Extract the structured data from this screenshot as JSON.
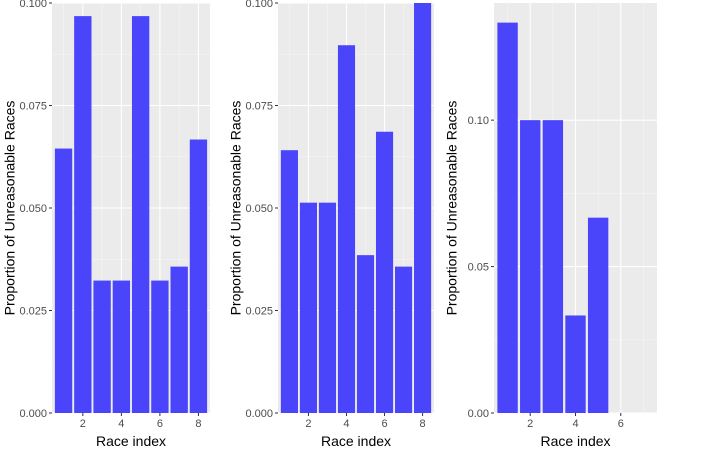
{
  "chart_data": [
    {
      "type": "bar",
      "x": [
        1,
        2,
        3,
        4,
        5,
        6,
        7,
        8
      ],
      "values": [
        0.0645,
        0.0968,
        0.0323,
        0.0323,
        0.0968,
        0.0323,
        0.0357,
        0.0667
      ],
      "xlabel": "Race index",
      "ylabel": "Proportion of Unreasonable Races",
      "xlim": [
        0.4,
        8.6
      ],
      "ylim": [
        0,
        0.1
      ],
      "xticks": [
        2,
        4,
        6,
        8
      ],
      "yticks": [
        0,
        0.025,
        0.05,
        0.075,
        0.1
      ],
      "ytick_labels": [
        "0.000",
        "0.025",
        "0.050",
        "0.075",
        "0.100"
      ],
      "grid": true
    },
    {
      "type": "bar",
      "x": [
        1,
        2,
        3,
        4,
        5,
        6,
        7,
        8
      ],
      "values": [
        0.0641,
        0.0513,
        0.0513,
        0.0897,
        0.0385,
        0.0686,
        0.0357,
        0.1
      ],
      "xlabel": "Race index",
      "ylabel": "Proportion of Unreasonable Races",
      "xlim": [
        0.4,
        8.6
      ],
      "ylim": [
        0,
        0.1
      ],
      "xticks": [
        2,
        4,
        6,
        8
      ],
      "yticks": [
        0,
        0.025,
        0.05,
        0.075,
        0.1
      ],
      "ytick_labels": [
        "0.000",
        "0.025",
        "0.050",
        "0.075",
        "0.100"
      ],
      "grid": true
    },
    {
      "type": "bar",
      "x": [
        1,
        2,
        3,
        4,
        5
      ],
      "values": [
        0.1333,
        0.1,
        0.1,
        0.0333,
        0.0667
      ],
      "xlabel": "Race index",
      "ylabel": "Proportion of Unreasonable Races",
      "xlim": [
        0.4,
        7.6
      ],
      "ylim": [
        0,
        0.14
      ],
      "xticks": [
        2,
        4,
        6
      ],
      "yticks": [
        0,
        0.05,
        0.1
      ],
      "ytick_labels": [
        "0.00",
        "0.05",
        "0.10"
      ],
      "grid": true
    }
  ],
  "colors": {
    "bar": "#4a44fb",
    "panel": "#ebebeb",
    "grid_major": "#ffffff",
    "tick_text": "#4d4d4d"
  }
}
